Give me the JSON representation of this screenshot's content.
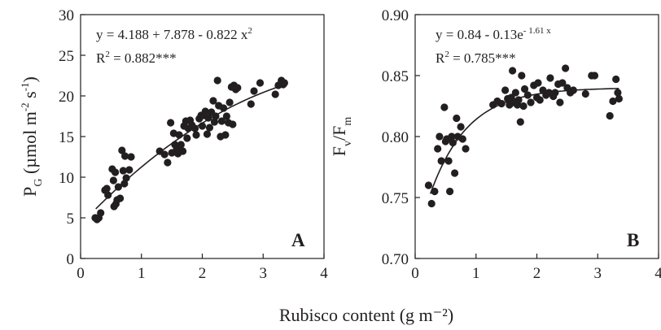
{
  "figure": {
    "shared_xlabel": "Rubisco content (g m⁻²)"
  },
  "chart_data": [
    {
      "type": "scatter",
      "panel_label": "A",
      "ylabel": "PG (µmol m⁻² s⁻¹)",
      "ylabel_parts": {
        "base": "P",
        "sub": "G",
        "rest": " (µmol m",
        "sup1": "-2",
        "mid": " s",
        "sup2": "-1",
        "end": ")"
      },
      "xlabel": "Rubisco content (g m⁻²)",
      "xlim": [
        0,
        4
      ],
      "ylim": [
        0,
        30
      ],
      "xticks": [
        "0",
        "1",
        "2",
        "3",
        "4"
      ],
      "yticks": [
        "0",
        "5",
        "10",
        "15",
        "20",
        "25",
        "30"
      ],
      "xtick_values": [
        0,
        1,
        2,
        3,
        4
      ],
      "ytick_values": [
        0,
        5,
        10,
        15,
        20,
        25,
        30
      ],
      "equation": "y = 4.188 + 7.878 - 0.822 x2",
      "equation_parts": {
        "main": "y = 4.188 + 7.878 - 0.822 x",
        "sup": "2"
      },
      "r2": "R2 = 0.882***",
      "r2_parts": {
        "pre": "R",
        "sup": "2",
        "post": " = 0.882***"
      },
      "fit": {
        "kind": "quadratic",
        "a": 4.188,
        "b": 7.878,
        "c": -0.822,
        "x_range": [
          0.25,
          3.35
        ]
      },
      "points": [
        [
          0.24,
          5.0
        ],
        [
          0.27,
          4.8
        ],
        [
          0.3,
          5.0
        ],
        [
          0.33,
          5.6
        ],
        [
          0.4,
          8.4
        ],
        [
          0.43,
          8.6
        ],
        [
          0.45,
          7.8
        ],
        [
          0.52,
          11.0
        ],
        [
          0.54,
          9.6
        ],
        [
          0.55,
          6.4
        ],
        [
          0.57,
          10.6
        ],
        [
          0.58,
          6.7
        ],
        [
          0.6,
          7.2
        ],
        [
          0.62,
          8.8
        ],
        [
          0.65,
          7.4
        ],
        [
          0.68,
          13.3
        ],
        [
          0.7,
          10.8
        ],
        [
          0.72,
          9.2
        ],
        [
          0.73,
          12.6
        ],
        [
          0.75,
          9.9
        ],
        [
          0.8,
          10.9
        ],
        [
          0.83,
          12.5
        ],
        [
          1.3,
          13.2
        ],
        [
          1.38,
          12.8
        ],
        [
          1.43,
          11.8
        ],
        [
          1.48,
          16.7
        ],
        [
          1.5,
          13.0
        ],
        [
          1.53,
          15.4
        ],
        [
          1.55,
          14.0
        ],
        [
          1.58,
          13.5
        ],
        [
          1.6,
          12.9
        ],
        [
          1.62,
          15.2
        ],
        [
          1.65,
          14.0
        ],
        [
          1.68,
          13.2
        ],
        [
          1.7,
          16.3
        ],
        [
          1.73,
          16.9
        ],
        [
          1.75,
          14.8
        ],
        [
          1.77,
          16.0
        ],
        [
          1.8,
          17.0
        ],
        [
          1.83,
          16.4
        ],
        [
          1.88,
          16.0
        ],
        [
          1.9,
          15.2
        ],
        [
          1.95,
          17.2
        ],
        [
          1.98,
          17.6
        ],
        [
          2.0,
          16.3
        ],
        [
          2.03,
          17.6
        ],
        [
          2.05,
          18.1
        ],
        [
          2.08,
          15.3
        ],
        [
          2.1,
          17.3
        ],
        [
          2.12,
          16.1
        ],
        [
          2.15,
          18.0
        ],
        [
          2.18,
          19.4
        ],
        [
          2.2,
          16.8
        ],
        [
          2.22,
          17.5
        ],
        [
          2.25,
          21.9
        ],
        [
          2.27,
          18.8
        ],
        [
          2.3,
          15.0
        ],
        [
          2.32,
          16.9
        ],
        [
          2.35,
          18.5
        ],
        [
          2.38,
          15.2
        ],
        [
          2.4,
          17.5
        ],
        [
          2.43,
          16.7
        ],
        [
          2.45,
          19.2
        ],
        [
          2.48,
          21.1
        ],
        [
          2.5,
          16.5
        ],
        [
          2.52,
          21.3
        ],
        [
          2.55,
          20.8
        ],
        [
          2.58,
          21.0
        ],
        [
          2.8,
          19.0
        ],
        [
          2.85,
          20.6
        ],
        [
          2.95,
          21.6
        ],
        [
          3.2,
          20.2
        ],
        [
          3.25,
          21.3
        ],
        [
          3.3,
          21.9
        ],
        [
          3.33,
          21.4
        ],
        [
          3.35,
          21.6
        ]
      ]
    },
    {
      "type": "scatter",
      "panel_label": "B",
      "ylabel": "Fv/Fm",
      "ylabel_parts": {
        "b1": "F",
        "s1": "v",
        "mid": "/F",
        "s2": "m"
      },
      "xlabel": "Rubisco content (g m⁻²)",
      "xlim": [
        0,
        4
      ],
      "ylim": [
        0.7,
        0.9
      ],
      "xticks": [
        "0",
        "1",
        "2",
        "3",
        "4"
      ],
      "yticks": [
        "0.70",
        "0.75",
        "0.80",
        "0.85",
        "0.90"
      ],
      "xtick_values": [
        0,
        1,
        2,
        3,
        4
      ],
      "ytick_values": [
        0.7,
        0.75,
        0.8,
        0.85,
        0.9
      ],
      "equation": "y = 0.84 - 0.13e-1.61 x",
      "equation_parts": {
        "main": "y = 0.84 - 0.13e",
        "sup": "- 1.61 x"
      },
      "r2": "R2 = 0.785***",
      "r2_parts": {
        "pre": "R",
        "sup": "2",
        "post": " = 0.785***"
      },
      "fit": {
        "kind": "exp",
        "a": 0.84,
        "b": 0.13,
        "k": 1.61,
        "x_range": [
          0.25,
          3.35
        ]
      },
      "points": [
        [
          0.22,
          0.76
        ],
        [
          0.27,
          0.745
        ],
        [
          0.32,
          0.755
        ],
        [
          0.37,
          0.79
        ],
        [
          0.4,
          0.8
        ],
        [
          0.43,
          0.78
        ],
        [
          0.48,
          0.824
        ],
        [
          0.5,
          0.796
        ],
        [
          0.52,
          0.798
        ],
        [
          0.55,
          0.78
        ],
        [
          0.57,
          0.755
        ],
        [
          0.6,
          0.8
        ],
        [
          0.62,
          0.795
        ],
        [
          0.65,
          0.77
        ],
        [
          0.68,
          0.815
        ],
        [
          0.7,
          0.8
        ],
        [
          0.75,
          0.808
        ],
        [
          0.78,
          0.798
        ],
        [
          0.83,
          0.79
        ],
        [
          1.28,
          0.826
        ],
        [
          1.35,
          0.829
        ],
        [
          1.42,
          0.827
        ],
        [
          1.48,
          0.838
        ],
        [
          1.52,
          0.831
        ],
        [
          1.55,
          0.826
        ],
        [
          1.58,
          0.832
        ],
        [
          1.6,
          0.854
        ],
        [
          1.62,
          0.828
        ],
        [
          1.65,
          0.836
        ],
        [
          1.68,
          0.826
        ],
        [
          1.7,
          0.83
        ],
        [
          1.73,
          0.812
        ],
        [
          1.75,
          0.85
        ],
        [
          1.78,
          0.825
        ],
        [
          1.8,
          0.839
        ],
        [
          1.85,
          0.834
        ],
        [
          1.9,
          0.828
        ],
        [
          1.95,
          0.842
        ],
        [
          2.0,
          0.832
        ],
        [
          2.02,
          0.844
        ],
        [
          2.05,
          0.83
        ],
        [
          2.1,
          0.838
        ],
        [
          2.15,
          0.834
        ],
        [
          2.2,
          0.836
        ],
        [
          2.22,
          0.848
        ],
        [
          2.27,
          0.833
        ],
        [
          2.3,
          0.836
        ],
        [
          2.35,
          0.843
        ],
        [
          2.38,
          0.828
        ],
        [
          2.42,
          0.844
        ],
        [
          2.47,
          0.856
        ],
        [
          2.5,
          0.84
        ],
        [
          2.55,
          0.836
        ],
        [
          2.6,
          0.838
        ],
        [
          2.8,
          0.835
        ],
        [
          2.9,
          0.85
        ],
        [
          2.95,
          0.85
        ],
        [
          3.2,
          0.817
        ],
        [
          3.25,
          0.829
        ],
        [
          3.3,
          0.847
        ],
        [
          3.33,
          0.836
        ],
        [
          3.35,
          0.831
        ]
      ]
    }
  ]
}
